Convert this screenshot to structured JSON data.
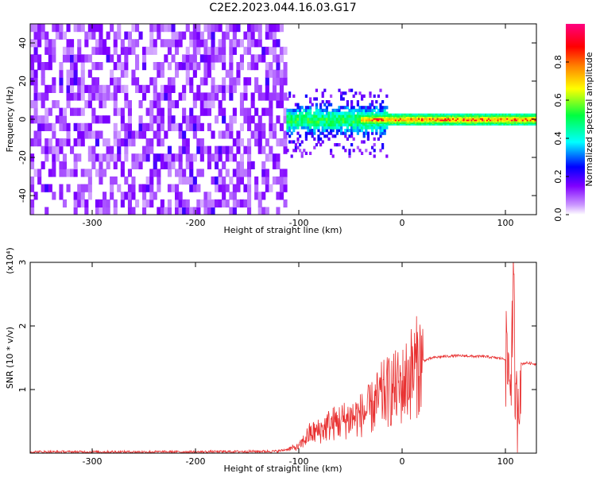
{
  "title": "C2E2.2023.044.16.03.G17",
  "chart_data": [
    {
      "type": "heatmap",
      "title": "C2E2.2023.044.16.03.G17",
      "xlabel": "Height of straight line (km)",
      "ylabel": "Frequency (Hz)",
      "xlim": [
        -360,
        130
      ],
      "ylim": [
        -50,
        50
      ],
      "x_ticks": [
        -300,
        -200,
        -100,
        0,
        100
      ],
      "x_tick_labels": [
        "-300",
        "-200",
        "-100",
        "0",
        "100"
      ],
      "y_ticks": [
        -40,
        -20,
        0,
        20,
        40
      ],
      "y_tick_labels": [
        "-40",
        "-20",
        "0",
        "20",
        "40"
      ],
      "colorbar": {
        "label": "Normalized spectral amplitude",
        "range": [
          0,
          1
        ],
        "ticks": [
          0,
          0.2,
          0.4,
          0.6,
          0.8
        ],
        "tick_labels": [
          "0.0",
          "0.2",
          "0.4",
          "0.6",
          "0.8"
        ],
        "colors": [
          "#ffffff",
          "#cc99ff",
          "#8000ff",
          "#0000ff",
          "#00ffff",
          "#00ff40",
          "#ffff00",
          "#ff8000",
          "#ff0000",
          "#ff0080"
        ]
      },
      "description_regions": [
        {
          "x_range": [
            -360,
            -112
          ],
          "freq_range": [
            -50,
            50
          ],
          "amplitude": "low-moderate (purple noise)"
        },
        {
          "x_range": [
            -112,
            -15
          ],
          "freq_range": [
            -20,
            15
          ],
          "amplitude": "moderate-high (blue/green)"
        },
        {
          "x_range": [
            -40,
            130
          ],
          "freq_range": [
            -2,
            2
          ],
          "amplitude": "high (green to red), centered near 0 Hz"
        }
      ],
      "grid": false
    },
    {
      "type": "line",
      "xlabel": "Height of straight line (km)",
      "ylabel": "SNR (10 * v/v)",
      "y_multiplier": "(x10⁴)",
      "xlim": [
        -360,
        130
      ],
      "ylim": [
        0,
        3
      ],
      "x_ticks": [
        -300,
        -200,
        -100,
        0,
        100
      ],
      "x_tick_labels": [
        "-300",
        "-200",
        "-100",
        "0",
        "100"
      ],
      "y_ticks": [
        1,
        2,
        3
      ],
      "y_tick_labels": [
        "1",
        "2",
        "3"
      ],
      "series": [
        {
          "color": "#e83030",
          "x": [
            -360,
            -300,
            -200,
            -120,
            -100,
            -90,
            -80,
            -70,
            -60,
            -50,
            -40,
            -30,
            -20,
            -10,
            0,
            10,
            20,
            30,
            40,
            50,
            60,
            70,
            80,
            90,
            100,
            105,
            108,
            110,
            115,
            120,
            130
          ],
          "y": [
            0.02,
            0.02,
            0.02,
            0.03,
            0.1,
            0.3,
            0.35,
            0.45,
            0.5,
            0.55,
            0.6,
            0.7,
            0.9,
            1.0,
            1.05,
            1.3,
            1.45,
            1.5,
            1.52,
            1.53,
            1.53,
            1.52,
            1.52,
            1.5,
            1.48,
            1.2,
            2.5,
            0.5,
            1.4,
            1.42,
            1.4
          ]
        }
      ],
      "grid": false
    }
  ]
}
